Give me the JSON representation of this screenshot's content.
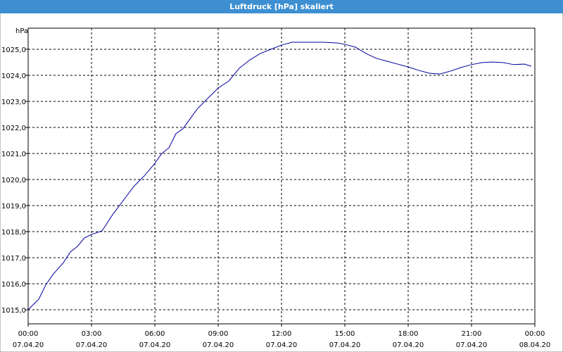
{
  "chart_data": {
    "type": "line",
    "title": "Luftdruck [hPa] skaliert",
    "y_label": "hPa",
    "xlim": [
      0,
      24
    ],
    "xticks": [
      {
        "value": 0,
        "label": [
          "00:00",
          "07.04.20"
        ]
      },
      {
        "value": 3,
        "label": [
          "03:00",
          "07.04.20"
        ]
      },
      {
        "value": 6,
        "label": [
          "06:00",
          "07.04.20"
        ]
      },
      {
        "value": 9,
        "label": [
          "09:00",
          "07.04.20"
        ]
      },
      {
        "value": 12,
        "label": [
          "12:00",
          "07.04.20"
        ]
      },
      {
        "value": 15,
        "label": [
          "15:00",
          "07.04.20"
        ]
      },
      {
        "value": 18,
        "label": [
          "18:00",
          "07.04.20"
        ]
      },
      {
        "value": 21,
        "label": [
          "21:00",
          "07.04.20"
        ]
      },
      {
        "value": 24,
        "label": [
          "00:00",
          "08.04.20"
        ]
      }
    ],
    "ylim": [
      1014.46,
      1025.81
    ],
    "yticks": [
      {
        "value": 1015,
        "label": "1015,0"
      },
      {
        "value": 1016,
        "label": "1016,0"
      },
      {
        "value": 1017,
        "label": "1017,0"
      },
      {
        "value": 1018,
        "label": "1018,0"
      },
      {
        "value": 1019,
        "label": "1019,0"
      },
      {
        "value": 1020,
        "label": "1020,0"
      },
      {
        "value": 1021,
        "label": "1021,0"
      },
      {
        "value": 1022,
        "label": "1022,0"
      },
      {
        "value": 1023,
        "label": "1023,0"
      },
      {
        "value": 1024,
        "label": "1024,0"
      },
      {
        "value": 1025,
        "label": "1025,0"
      }
    ],
    "grid": true,
    "x": [
      0,
      0.33,
      0.5,
      0.83,
      1.17,
      1.67,
      2,
      2.33,
      2.67,
      3,
      3.5,
      4,
      4.5,
      5,
      5.5,
      6,
      6.33,
      6.67,
      7,
      7.33,
      8,
      8.5,
      9,
      9.5,
      10,
      10.5,
      11,
      11.5,
      12,
      12.5,
      13,
      14,
      14.67,
      15,
      15.5,
      16,
      16.5,
      17,
      17.5,
      18,
      18.5,
      19,
      19.5,
      20,
      20.5,
      21,
      21.5,
      22,
      22.5,
      23,
      23.5,
      23.83
    ],
    "series": [
      {
        "name": "Luftdruck",
        "color": "#0000a0",
        "values": [
          1015.0,
          1015.27,
          1015.4,
          1015.95,
          1016.35,
          1016.81,
          1017.22,
          1017.43,
          1017.76,
          1017.89,
          1018.03,
          1018.65,
          1019.19,
          1019.73,
          1020.14,
          1020.62,
          1021.0,
          1021.22,
          1021.76,
          1021.95,
          1022.7,
          1023.11,
          1023.51,
          1023.78,
          1024.27,
          1024.59,
          1024.84,
          1025.0,
          1025.16,
          1025.27,
          1025.27,
          1025.27,
          1025.24,
          1025.19,
          1025.08,
          1024.84,
          1024.65,
          1024.54,
          1024.43,
          1024.32,
          1024.19,
          1024.08,
          1024.05,
          1024.16,
          1024.3,
          1024.41,
          1024.49,
          1024.51,
          1024.49,
          1024.41,
          1024.43,
          1024.35
        ]
      }
    ]
  }
}
